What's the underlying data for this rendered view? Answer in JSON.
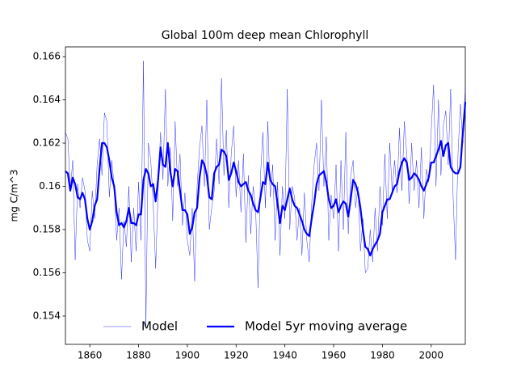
{
  "chart_data": {
    "type": "line",
    "title": "Global 100m deep mean Chlorophyll",
    "y_label": "mg C/m^3",
    "x": [
      1850,
      1851,
      1852,
      1853,
      1854,
      1855,
      1856,
      1857,
      1858,
      1859,
      1860,
      1861,
      1862,
      1863,
      1864,
      1865,
      1866,
      1867,
      1868,
      1869,
      1870,
      1871,
      1872,
      1873,
      1874,
      1875,
      1876,
      1877,
      1878,
      1879,
      1880,
      1881,
      1882,
      1883,
      1884,
      1885,
      1886,
      1887,
      1888,
      1889,
      1890,
      1891,
      1892,
      1893,
      1894,
      1895,
      1896,
      1897,
      1898,
      1899,
      1900,
      1901,
      1902,
      1903,
      1904,
      1905,
      1906,
      1907,
      1908,
      1909,
      1910,
      1911,
      1912,
      1913,
      1914,
      1915,
      1916,
      1917,
      1918,
      1919,
      1920,
      1921,
      1922,
      1923,
      1924,
      1925,
      1926,
      1927,
      1928,
      1929,
      1930,
      1931,
      1932,
      1933,
      1934,
      1935,
      1936,
      1937,
      1938,
      1939,
      1940,
      1941,
      1942,
      1943,
      1944,
      1945,
      1946,
      1947,
      1948,
      1949,
      1950,
      1951,
      1952,
      1953,
      1954,
      1955,
      1956,
      1957,
      1958,
      1959,
      1960,
      1961,
      1962,
      1963,
      1964,
      1965,
      1966,
      1967,
      1968,
      1969,
      1970,
      1971,
      1972,
      1973,
      1974,
      1975,
      1976,
      1977,
      1978,
      1979,
      1980,
      1981,
      1982,
      1983,
      1984,
      1985,
      1986,
      1987,
      1988,
      1989,
      1990,
      1991,
      1992,
      1993,
      1994,
      1995,
      1996,
      1997,
      1998,
      1999,
      2000,
      2001,
      2002,
      2003,
      2004,
      2005,
      2006,
      2007,
      2008,
      2009,
      2010,
      2011,
      2012,
      2013,
      2014
    ],
    "series": [
      {
        "name": "Model",
        "color": "#0000ff",
        "linewidth": 0.4,
        "values": [
          0.1625,
          0.1622,
          0.1598,
          0.1612,
          0.1566,
          0.1601,
          0.159,
          0.1604,
          0.1598,
          0.1575,
          0.157,
          0.1598,
          0.1585,
          0.161,
          0.1622,
          0.1605,
          0.1634,
          0.163,
          0.1595,
          0.1612,
          0.16,
          0.1575,
          0.159,
          0.1557,
          0.1584,
          0.1572,
          0.16,
          0.1565,
          0.159,
          0.157,
          0.1602,
          0.1575,
          0.1658,
          0.1535,
          0.162,
          0.1612,
          0.1592,
          0.1562,
          0.1598,
          0.1625,
          0.1603,
          0.1645,
          0.16,
          0.1618,
          0.1584,
          0.163,
          0.16,
          0.1615,
          0.1582,
          0.1597,
          0.1575,
          0.1568,
          0.159,
          0.1556,
          0.16,
          0.1618,
          0.1628,
          0.16,
          0.164,
          0.158,
          0.159,
          0.1598,
          0.1622,
          0.1601,
          0.165,
          0.1605,
          0.1626,
          0.159,
          0.1615,
          0.1628,
          0.1595,
          0.1612,
          0.1588,
          0.1615,
          0.1574,
          0.1605,
          0.1578,
          0.16,
          0.159,
          0.1553,
          0.1605,
          0.1625,
          0.159,
          0.163,
          0.1595,
          0.161,
          0.1575,
          0.1602,
          0.1568,
          0.16,
          0.1585,
          0.1645,
          0.158,
          0.16,
          0.1595,
          0.1575,
          0.159,
          0.1568,
          0.1597,
          0.1575,
          0.1565,
          0.1592,
          0.161,
          0.162,
          0.1598,
          0.164,
          0.16,
          0.1623,
          0.1575,
          0.1596,
          0.1585,
          0.161,
          0.157,
          0.1612,
          0.158,
          0.1625,
          0.1578,
          0.1605,
          0.1612,
          0.159,
          0.16,
          0.157,
          0.1585,
          0.156,
          0.1562,
          0.158,
          0.1565,
          0.159,
          0.157,
          0.16,
          0.1582,
          0.1615,
          0.1585,
          0.162,
          0.1598,
          0.1612,
          0.1597,
          0.1627,
          0.1598,
          0.163,
          0.1615,
          0.1592,
          0.162,
          0.1598,
          0.1612,
          0.159,
          0.1618,
          0.1585,
          0.1608,
          0.1602,
          0.1625,
          0.1647,
          0.16,
          0.164,
          0.1605,
          0.1628,
          0.1635,
          0.161,
          0.1645,
          0.1595,
          0.1566,
          0.1615,
          0.1638,
          0.162,
          0.1646
        ]
      },
      {
        "name": "Model 5yr moving average",
        "color": "#0000ff",
        "linewidth": 2.2,
        "values": [
          0.1607,
          0.1606,
          0.1598,
          0.1604,
          0.1601,
          0.1595,
          0.1594,
          0.1597,
          0.1594,
          0.1585,
          0.158,
          0.1584,
          0.1591,
          0.1594,
          0.1608,
          0.162,
          0.162,
          0.1618,
          0.1612,
          0.1604,
          0.16,
          0.1588,
          0.1582,
          0.1583,
          0.1581,
          0.1584,
          0.159,
          0.1583,
          0.1583,
          0.1582,
          0.1587,
          0.1587,
          0.1603,
          0.1608,
          0.1606,
          0.16,
          0.1601,
          0.1593,
          0.1603,
          0.1618,
          0.161,
          0.1609,
          0.162,
          0.1607,
          0.16,
          0.1608,
          0.1607,
          0.1598,
          0.1589,
          0.1589,
          0.1587,
          0.1578,
          0.1581,
          0.1588,
          0.159,
          0.1604,
          0.1612,
          0.161,
          0.1605,
          0.1595,
          0.1594,
          0.1606,
          0.1609,
          0.161,
          0.1617,
          0.1616,
          0.1614,
          0.1603,
          0.1606,
          0.1611,
          0.1607,
          0.1602,
          0.16,
          0.1601,
          0.1602,
          0.1598,
          0.1596,
          0.1592,
          0.1589,
          0.1588,
          0.1595,
          0.1602,
          0.1601,
          0.1611,
          0.1603,
          0.1601,
          0.16,
          0.1592,
          0.1583,
          0.1591,
          0.1589,
          0.1594,
          0.1599,
          0.1594,
          0.1591,
          0.159,
          0.1587,
          0.1584,
          0.158,
          0.1578,
          0.1577,
          0.1585,
          0.1592,
          0.1601,
          0.1605,
          0.1606,
          0.1607,
          0.1602,
          0.1594,
          0.159,
          0.1591,
          0.1594,
          0.1588,
          0.1591,
          0.1593,
          0.1592,
          0.1586,
          0.1594,
          0.1603,
          0.1601,
          0.1597,
          0.159,
          0.158,
          0.1572,
          0.1571,
          0.1568,
          0.1571,
          0.1573,
          0.1575,
          0.1578,
          0.1588,
          0.1591,
          0.1594,
          0.1594,
          0.1597,
          0.16,
          0.1601,
          0.1607,
          0.1611,
          0.1613,
          0.1611,
          0.1603,
          0.1604,
          0.1606,
          0.1605,
          0.1603,
          0.16,
          0.1598,
          0.1601,
          0.1604,
          0.1611,
          0.1611,
          0.1614,
          0.1617,
          0.1621,
          0.1614,
          0.1619,
          0.162,
          0.1609,
          0.1607,
          0.1606,
          0.1606,
          0.1609,
          0.1625,
          0.1639
        ]
      }
    ],
    "xlim": [
      1850,
      2014
    ],
    "xticks": [
      1860,
      1880,
      1900,
      1920,
      1940,
      1960,
      1980,
      2000
    ],
    "ylim": [
      0.15269,
      0.16645
    ],
    "yticks": [
      0.154,
      0.156,
      0.158,
      0.16,
      0.162,
      0.164,
      0.166
    ],
    "legend": "lower center",
    "grid": false
  }
}
